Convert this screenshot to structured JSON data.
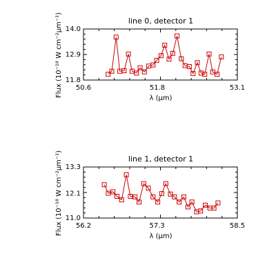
{
  "chart_data": [
    {
      "type": "line",
      "title": "line 0, detector 1",
      "xlabel": "λ (μm)",
      "ylabel": "Flux (10⁻¹⁸ W cm⁻²μm⁻¹)",
      "xlim": [
        50.6,
        53.1
      ],
      "ylim": [
        11.8,
        14.0
      ],
      "xticks": [
        "50.6",
        "51.8",
        "53.1"
      ],
      "yticks": [
        "11.8",
        "12.9",
        "14.0"
      ],
      "grid": false,
      "marker": "open-square",
      "color": "#cc0000",
      "x": [
        51.0,
        51.06,
        51.13,
        51.19,
        51.26,
        51.33,
        51.39,
        51.46,
        51.52,
        51.59,
        51.66,
        51.73,
        51.79,
        51.86,
        51.92,
        51.99,
        52.05,
        52.12,
        52.19,
        52.25,
        52.32,
        52.38,
        52.45,
        52.51,
        52.57,
        52.64,
        52.7
      ],
      "y": [
        12.05,
        12.18,
        13.65,
        12.18,
        12.2,
        12.92,
        12.18,
        12.1,
        12.33,
        12.15,
        12.4,
        12.45,
        12.65,
        12.85,
        13.3,
        12.7,
        12.95,
        13.7,
        12.72,
        12.42,
        12.38,
        12.08,
        12.55,
        12.1,
        12.05,
        12.92,
        12.15
      ],
      "y_extra": [
        12.05,
        12.8
      ],
      "x_extra": [
        52.77,
        52.84
      ]
    },
    {
      "type": "line",
      "title": "line 1, detector 1",
      "xlabel": "λ (μm)",
      "ylabel": "Flux (10⁻¹⁸ W cm⁻²μm⁻¹)",
      "xlim": [
        56.2,
        58.5
      ],
      "ylim": [
        11.0,
        13.3
      ],
      "xticks": [
        "56.2",
        "57.3",
        "58.5"
      ],
      "yticks": [
        "11.0",
        "12.1",
        "13.3"
      ],
      "grid": false,
      "marker": "open-square",
      "color": "#cc0000",
      "x": [
        56.51,
        56.57,
        56.64,
        56.7,
        56.77,
        56.84,
        56.9,
        56.97,
        57.03,
        57.1,
        57.17,
        57.24,
        57.31,
        57.37,
        57.43,
        57.5,
        57.56,
        57.63,
        57.7,
        57.76,
        57.82,
        57.89,
        57.95,
        58.02,
        58.09,
        58.15,
        58.21
      ],
      "y": [
        12.5,
        12.12,
        12.18,
        11.98,
        11.82,
        12.95,
        11.98,
        11.95,
        11.72,
        12.55,
        12.35,
        11.95,
        11.72,
        12.1,
        12.55,
        12.08,
        11.95,
        11.72,
        11.95,
        11.5,
        11.72,
        11.28,
        11.32,
        11.58,
        11.45,
        11.45,
        11.68
      ],
      "y_extra": [],
      "x_extra": []
    }
  ]
}
